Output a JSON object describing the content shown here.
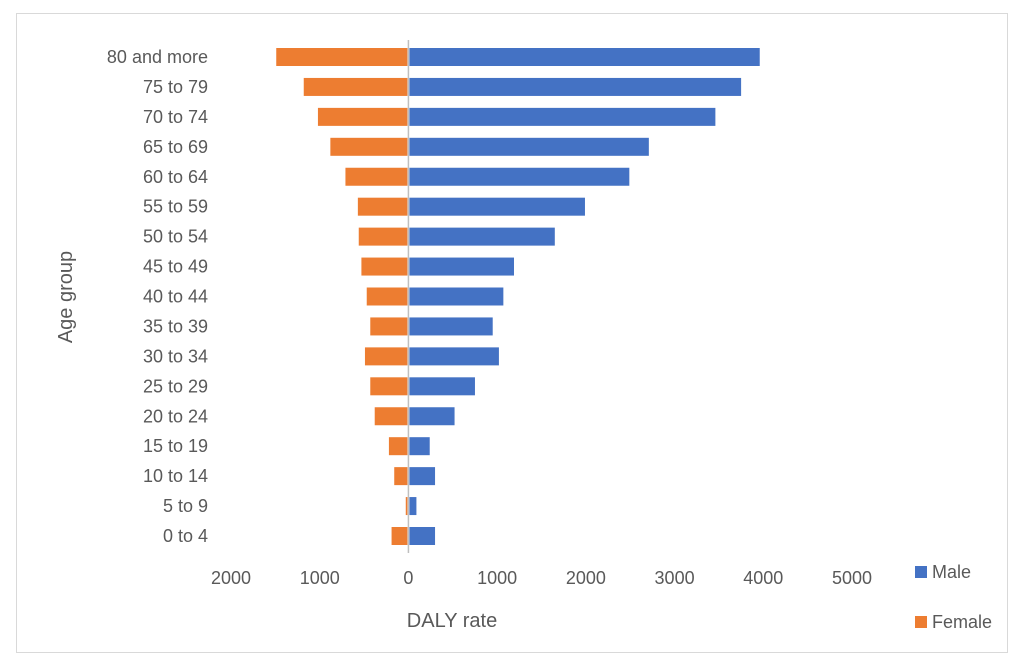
{
  "chart_data": {
    "type": "bar",
    "orientation": "horizontal",
    "title": "",
    "xlabel": "DALY rate",
    "ylabel": "Age group",
    "categories": [
      "0 to 4",
      "5 to 9",
      "10 to 14",
      "15 to 19",
      "20 to 24",
      "25 to 29",
      "30 to 34",
      "35 to 39",
      "40 to 44",
      "45 to 49",
      "50 to 54",
      "55 to 59",
      "60 to 64",
      "65 to 69",
      "70 to 74",
      "75 to 79",
      "80 and more"
    ],
    "series": [
      {
        "name": "Male",
        "color": "#4472c4",
        "values": [
          300,
          90,
          300,
          240,
          520,
          750,
          1020,
          950,
          1070,
          1190,
          1650,
          1990,
          2490,
          2710,
          3460,
          3750,
          3960
        ]
      },
      {
        "name": "Female",
        "color": "#ed7d31",
        "values": [
          190,
          30,
          160,
          220,
          380,
          430,
          490,
          430,
          470,
          530,
          560,
          570,
          710,
          880,
          1020,
          1180,
          1490
        ]
      }
    ],
    "xlim": [
      -2000,
      5000
    ],
    "x_ticks": [
      "2000",
      "1000",
      "0",
      "1000",
      "2000",
      "3000",
      "4000",
      "5000"
    ],
    "grid": false,
    "legend_position": "right"
  }
}
